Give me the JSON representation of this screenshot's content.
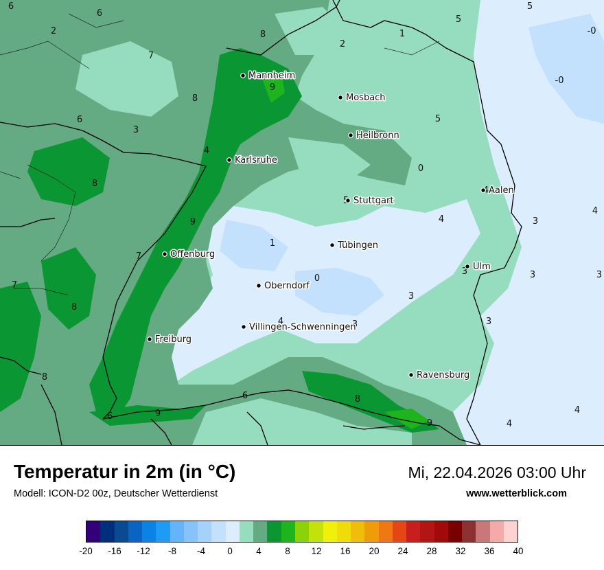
{
  "title": "Temperatur in 2m (in °C)",
  "model": "Modell: ICON-D2 00z, Deutscher Wetterdienst",
  "datetime": "Mi, 22.04.2026 03:00 Uhr",
  "website": "www.wetterblick.com",
  "cities": [
    {
      "name": "Mannheim"
    },
    {
      "name": "Mosbach"
    },
    {
      "name": "Heilbronn"
    },
    {
      "name": "Karlsruhe"
    },
    {
      "name": "Aalen"
    },
    {
      "name": "Stuttgart"
    },
    {
      "name": "Tübingen"
    },
    {
      "name": "Offenburg"
    },
    {
      "name": "Ulm"
    },
    {
      "name": "Oberndorf"
    },
    {
      "name": "Villingen-Schwenningen"
    },
    {
      "name": "Freiburg"
    },
    {
      "name": "Ravensburg"
    }
  ],
  "temperature_labels": [
    "6",
    "6",
    "2",
    "8",
    "1",
    "2",
    "5",
    "5",
    "-0",
    "-0",
    "7",
    "8",
    "9",
    "6",
    "3",
    "5",
    "4",
    "0",
    "8",
    "4",
    "5",
    "4",
    "4",
    "9",
    "3",
    "3",
    "1",
    "7",
    "0",
    "7",
    "3",
    "3",
    "8",
    "3",
    "4",
    "3",
    "8",
    "3",
    "6",
    "9",
    "8",
    "9",
    "4",
    "4",
    "6"
  ],
  "scale": {
    "colors": [
      "#33007a",
      "#002e7f",
      "#0a4a93",
      "#0a64c4",
      "#0a82e6",
      "#1e9cf5",
      "#64b4fa",
      "#87c3fa",
      "#a5d2fa",
      "#c3e1fc",
      "#dceefe",
      "#96dcbe",
      "#64aa82",
      "#0a9632",
      "#1eb41e",
      "#8cd20a",
      "#c3e10a",
      "#f0f00a",
      "#f0dc0a",
      "#f0be0a",
      "#f09b0a",
      "#f07814",
      "#e64614",
      "#c81e1e",
      "#b41414",
      "#a00a0a",
      "#780000",
      "#8c3232",
      "#c87878",
      "#f5aaaa",
      "#ffd2d2"
    ],
    "ticks": [
      "-20",
      "-16",
      "-12",
      "-8",
      "-4",
      "0",
      "4",
      "8",
      "12",
      "16",
      "20",
      "24",
      "28",
      "32",
      "36",
      "40"
    ]
  }
}
